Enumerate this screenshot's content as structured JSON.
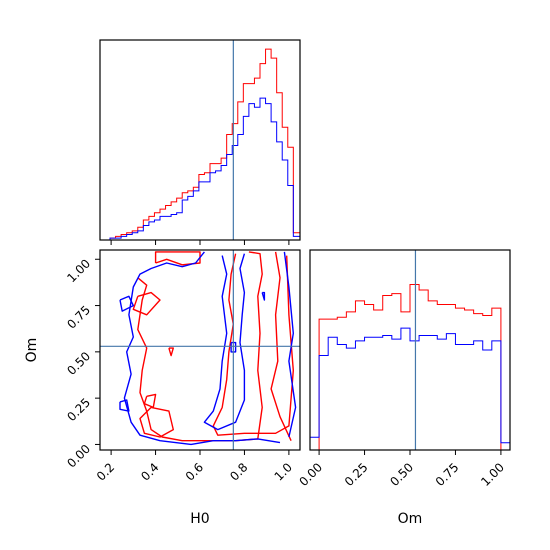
{
  "chart_data": [
    {
      "type": "histogram",
      "panel": "H0 marginal",
      "x_range": [
        0.15,
        1.05
      ],
      "x_ticks": [
        "0.2",
        "0.4",
        "0.6",
        "0.8",
        "1.0"
      ],
      "x_tick_values": [
        0.2,
        0.4,
        0.6,
        0.8,
        1.0
      ],
      "tick_labels_shown": false,
      "truth": 0.75,
      "bin_edges": [
        0.17,
        0.195,
        0.22,
        0.245,
        0.27,
        0.295,
        0.32,
        0.345,
        0.37,
        0.395,
        0.42,
        0.445,
        0.47,
        0.495,
        0.52,
        0.545,
        0.57,
        0.595,
        0.62,
        0.645,
        0.67,
        0.695,
        0.72,
        0.745,
        0.77,
        0.795,
        0.82,
        0.845,
        0.87,
        0.895,
        0.92,
        0.945,
        0.97,
        0.995,
        1.02,
        1.05
      ],
      "series": [
        {
          "name": "",
          "color": "#ff0000",
          "values": [
            0,
            1,
            2,
            3,
            4,
            5,
            7,
            11,
            13,
            15,
            17,
            19,
            21,
            23,
            26,
            27,
            29,
            36,
            37,
            42,
            42,
            45,
            58,
            64,
            76,
            86,
            86,
            89,
            97,
            105,
            100,
            81,
            62,
            51,
            4
          ]
        },
        {
          "name": "",
          "color": "#0000ff",
          "values": [
            0,
            1,
            1,
            2,
            3,
            4,
            5,
            8,
            10,
            11,
            13,
            13,
            14,
            15,
            22,
            24,
            27,
            32,
            32,
            37,
            38,
            41,
            47,
            52,
            58,
            68,
            75,
            73,
            78,
            75,
            65,
            54,
            44,
            30,
            2
          ]
        }
      ]
    },
    {
      "type": "contour",
      "panel": "H0 vs Om",
      "x_range": [
        0.15,
        1.05
      ],
      "y_range": [
        -0.03,
        1.05
      ],
      "x_ticks": [
        "0.2",
        "0.4",
        "0.6",
        "0.8",
        "1.0"
      ],
      "x_tick_values": [
        0.2,
        0.4,
        0.6,
        0.8,
        1.0
      ],
      "y_ticks": [
        "0.00",
        "0.25",
        "0.50",
        "0.75",
        "1.00"
      ],
      "y_tick_values": [
        0.0,
        0.25,
        0.5,
        0.75,
        1.0
      ],
      "xlabel": "H0",
      "ylabel": "Om",
      "truth": {
        "x": 0.75,
        "y": 0.53
      },
      "series": [
        {
          "name": "",
          "color": "#ff0000",
          "contours": [
            [
              [
                0.4,
                0.98
              ],
              [
                0.4,
                1.04
              ],
              [
                0.6,
                1.04
              ],
              [
                0.6,
                0.98
              ],
              [
                0.52,
                0.97
              ],
              [
                0.45,
                1.0
              ],
              [
                0.4,
                0.98
              ]
            ],
            [
              [
                0.32,
                0.8
              ],
              [
                0.38,
                0.82
              ],
              [
                0.42,
                0.78
              ],
              [
                0.36,
                0.7
              ],
              [
                0.3,
                0.73
              ],
              [
                0.32,
                0.8
              ]
            ],
            [
              [
                0.38,
                0.2
              ],
              [
                0.46,
                0.18
              ],
              [
                0.48,
                0.08
              ],
              [
                0.42,
                0.04
              ],
              [
                0.35,
                0.06
              ],
              [
                0.33,
                0.14
              ],
              [
                0.38,
                0.2
              ]
            ],
            [
              [
                0.32,
                0.9
              ],
              [
                0.36,
                0.86
              ],
              [
                0.34,
                0.78
              ],
              [
                0.32,
                0.62
              ],
              [
                0.36,
                0.52
              ],
              [
                0.34,
                0.4
              ],
              [
                0.33,
                0.28
              ],
              [
                0.36,
                0.18
              ],
              [
                0.38,
                0.08
              ],
              [
                0.43,
                0.04
              ],
              [
                0.52,
                0.02
              ],
              [
                0.62,
                0.02
              ],
              [
                0.76,
                0.02
              ],
              [
                0.86,
                0.03
              ],
              [
                0.88,
                0.2
              ],
              [
                0.86,
                0.4
              ],
              [
                0.87,
                0.6
              ],
              [
                0.86,
                0.8
              ],
              [
                0.88,
                0.92
              ],
              [
                0.87,
                1.03
              ],
              [
                0.82,
                1.04
              ]
            ],
            [
              [
                0.76,
                1.03
              ],
              [
                0.74,
                0.92
              ],
              [
                0.73,
                0.78
              ],
              [
                0.75,
                0.65
              ],
              [
                0.73,
                0.5
              ],
              [
                0.72,
                0.35
              ],
              [
                0.7,
                0.2
              ],
              [
                0.66,
                0.1
              ],
              [
                0.68,
                0.05
              ],
              [
                0.8,
                0.06
              ],
              [
                0.94,
                0.06
              ],
              [
                1.0,
                0.1
              ],
              [
                1.02,
                0.4
              ],
              [
                1.0,
                0.7
              ],
              [
                0.99,
                1.02
              ]
            ],
            [
              [
                0.94,
                1.04
              ],
              [
                0.96,
                0.9
              ],
              [
                0.94,
                0.7
              ],
              [
                0.95,
                0.45
              ],
              [
                0.92,
                0.3
              ],
              [
                0.96,
                0.15
              ],
              [
                1.01,
                0.02
              ]
            ],
            [
              [
                0.36,
                0.26
              ],
              [
                0.4,
                0.27
              ],
              [
                0.39,
                0.2
              ],
              [
                0.35,
                0.22
              ],
              [
                0.36,
                0.26
              ]
            ],
            [
              [
                0.46,
                0.52
              ],
              [
                0.48,
                0.52
              ],
              [
                0.47,
                0.48
              ],
              [
                0.46,
                0.52
              ]
            ]
          ]
        },
        {
          "name": "",
          "color": "#0000ff",
          "contours": [
            [
              [
                0.62,
                1.04
              ],
              [
                0.58,
                0.98
              ],
              [
                0.52,
                0.96
              ],
              [
                0.45,
                0.98
              ],
              [
                0.38,
                0.95
              ],
              [
                0.33,
                0.92
              ],
              [
                0.3,
                0.85
              ],
              [
                0.28,
                0.7
              ],
              [
                0.3,
                0.58
              ],
              [
                0.27,
                0.5
              ],
              [
                0.29,
                0.38
              ],
              [
                0.26,
                0.25
              ],
              [
                0.29,
                0.12
              ],
              [
                0.33,
                0.05
              ],
              [
                0.42,
                0.02
              ],
              [
                0.56,
                0.0
              ],
              [
                0.66,
                0.02
              ],
              [
                0.76,
                0.02
              ],
              [
                0.86,
                0.03
              ],
              [
                0.96,
                0.01
              ]
            ],
            [
              [
                0.7,
                1.02
              ],
              [
                0.72,
                0.92
              ],
              [
                0.7,
                0.8
              ],
              [
                0.72,
                0.6
              ],
              [
                0.7,
                0.45
              ],
              [
                0.69,
                0.3
              ],
              [
                0.66,
                0.18
              ],
              [
                0.62,
                0.12
              ],
              [
                0.68,
                0.08
              ],
              [
                0.76,
                0.12
              ],
              [
                0.8,
                0.24
              ],
              [
                0.8,
                0.4
              ],
              [
                0.78,
                0.55
              ],
              [
                0.79,
                0.7
              ],
              [
                0.8,
                0.82
              ],
              [
                0.78,
                0.95
              ],
              [
                0.8,
                1.03
              ]
            ],
            [
              [
                0.98,
                1.04
              ],
              [
                1.0,
                0.85
              ],
              [
                1.02,
                0.6
              ],
              [
                1.0,
                0.45
              ],
              [
                1.03,
                0.2
              ],
              [
                1.0,
                0.04
              ]
            ],
            [
              [
                0.24,
                0.78
              ],
              [
                0.28,
                0.8
              ],
              [
                0.3,
                0.75
              ],
              [
                0.25,
                0.72
              ],
              [
                0.24,
                0.78
              ]
            ],
            [
              [
                0.24,
                0.23
              ],
              [
                0.27,
                0.24
              ],
              [
                0.28,
                0.18
              ],
              [
                0.24,
                0.19
              ],
              [
                0.24,
                0.23
              ]
            ],
            [
              [
                0.74,
                0.55
              ],
              [
                0.76,
                0.55
              ],
              [
                0.76,
                0.5
              ],
              [
                0.74,
                0.5
              ],
              [
                0.74,
                0.55
              ]
            ],
            [
              [
                0.88,
                0.82
              ],
              [
                0.89,
                0.82
              ],
              [
                0.89,
                0.78
              ],
              [
                0.88,
                0.82
              ]
            ]
          ]
        }
      ]
    },
    {
      "type": "histogram",
      "panel": "Om marginal",
      "x_range": [
        -0.05,
        1.05
      ],
      "x_ticks": [
        "0.00",
        "0.25",
        "0.50",
        "0.75",
        "1.00"
      ],
      "x_tick_values": [
        0.0,
        0.25,
        0.5,
        0.75,
        1.0
      ],
      "xlabel": "Om",
      "truth": 0.53,
      "bin_edges": [
        -0.05,
        0.0,
        0.05,
        0.1,
        0.15,
        0.2,
        0.25,
        0.3,
        0.35,
        0.4,
        0.45,
        0.5,
        0.55,
        0.6,
        0.65,
        0.7,
        0.75,
        0.8,
        0.85,
        0.9,
        0.95,
        1.0,
        1.05
      ],
      "series": [
        {
          "name": "",
          "color": "#ff0000",
          "values": [
            0,
            72,
            72,
            73,
            76,
            82,
            80,
            77,
            85,
            86,
            76,
            91,
            88,
            82,
            80,
            80,
            78,
            77,
            75,
            74,
            78,
            0
          ]
        },
        {
          "name": "",
          "color": "#0000ff",
          "values": [
            7,
            52,
            62,
            58,
            56,
            60,
            62,
            62,
            63,
            61,
            67,
            60,
            63,
            63,
            61,
            64,
            58,
            58,
            60,
            55,
            60,
            4
          ]
        }
      ]
    }
  ]
}
